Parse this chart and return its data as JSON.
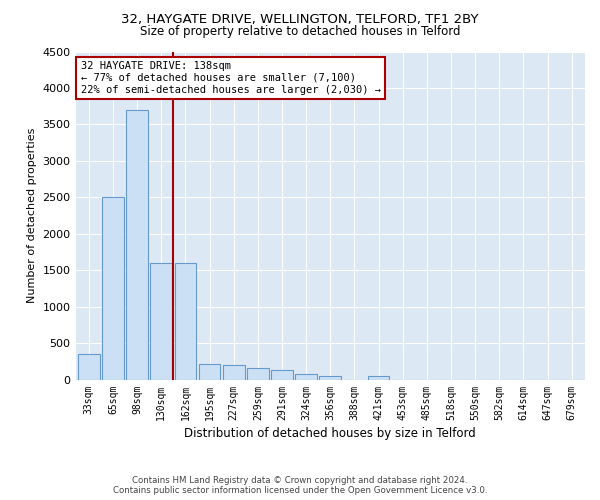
{
  "title_line1": "32, HAYGATE DRIVE, WELLINGTON, TELFORD, TF1 2BY",
  "title_line2": "Size of property relative to detached houses in Telford",
  "xlabel": "Distribution of detached houses by size in Telford",
  "ylabel": "Number of detached properties",
  "footer_line1": "Contains HM Land Registry data © Crown copyright and database right 2024.",
  "footer_line2": "Contains public sector information licensed under the Open Government Licence v3.0.",
  "annotation_line1": "32 HAYGATE DRIVE: 138sqm",
  "annotation_line2": "← 77% of detached houses are smaller (7,100)",
  "annotation_line3": "22% of semi-detached houses are larger (2,030) →",
  "bar_color": "#cce0f5",
  "bar_edge_color": "#6699cc",
  "red_line_color": "#aa0000",
  "background_color": "#dde8f5",
  "grid_color": "#ffffff",
  "categories": [
    "33sqm",
    "65sqm",
    "98sqm",
    "130sqm",
    "162sqm",
    "195sqm",
    "227sqm",
    "259sqm",
    "291sqm",
    "324sqm",
    "356sqm",
    "388sqm",
    "421sqm",
    "453sqm",
    "485sqm",
    "518sqm",
    "550sqm",
    "582sqm",
    "614sqm",
    "647sqm",
    "679sqm"
  ],
  "values": [
    350,
    2500,
    3700,
    1600,
    1600,
    220,
    200,
    170,
    130,
    80,
    50,
    0,
    50,
    0,
    0,
    0,
    0,
    0,
    0,
    0,
    0
  ],
  "ylim": [
    0,
    4500
  ],
  "yticks": [
    0,
    500,
    1000,
    1500,
    2000,
    2500,
    3000,
    3500,
    4000,
    4500
  ],
  "red_line_x": 3.5
}
